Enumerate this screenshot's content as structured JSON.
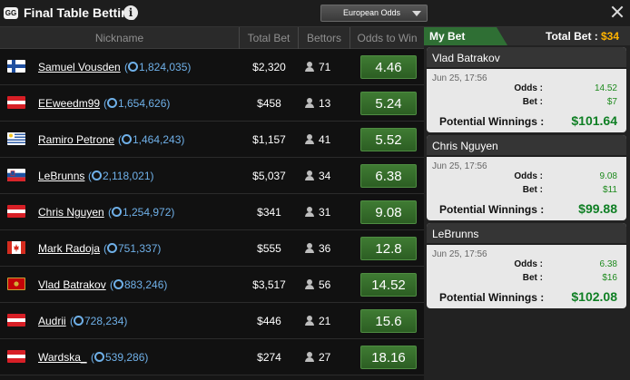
{
  "window": {
    "logo": "GG",
    "title": "Final Table Betting",
    "odds_format": "European Odds"
  },
  "table": {
    "headers": [
      "Nickname",
      "Total Bet",
      "Bettors",
      "Odds to Win"
    ],
    "rows": [
      {
        "flag": "finland",
        "nickname": "Samuel Vousden",
        "chips": "1,824,035",
        "total_bet": "$2,320",
        "bettors": "71",
        "odds": "4.46"
      },
      {
        "flag": "austria",
        "nickname": "EEweedm99",
        "chips": "1,654,626",
        "total_bet": "$458",
        "bettors": "13",
        "odds": "5.24"
      },
      {
        "flag": "uruguay",
        "nickname": "Ramiro Petrone",
        "chips": "1,464,243",
        "total_bet": "$1,157",
        "bettors": "41",
        "odds": "5.52"
      },
      {
        "flag": "slovenia",
        "nickname": "LeBrunns",
        "chips": "2,118,021",
        "total_bet": "$5,037",
        "bettors": "34",
        "odds": "6.38"
      },
      {
        "flag": "austria",
        "nickname": "Chris Nguyen",
        "chips": "1,254,972",
        "total_bet": "$341",
        "bettors": "31",
        "odds": "9.08"
      },
      {
        "flag": "canada",
        "nickname": "Mark Radoja",
        "chips": "751,337",
        "total_bet": "$555",
        "bettors": "36",
        "odds": "12.8"
      },
      {
        "flag": "montenegro",
        "nickname": "Vlad Batrakov",
        "chips": "883,246",
        "total_bet": "$3,517",
        "bettors": "56",
        "odds": "14.52"
      },
      {
        "flag": "austria",
        "nickname": "Audrii",
        "chips": "728,234",
        "total_bet": "$446",
        "bettors": "21",
        "odds": "15.6"
      },
      {
        "flag": "austria",
        "nickname": "Wardska_",
        "chips": "539,286",
        "total_bet": "$274",
        "bettors": "27",
        "odds": "18.16"
      }
    ]
  },
  "my_bet": {
    "tab_label": "My Bet",
    "total_label": "Total Bet :",
    "total_value": "$34",
    "odds_label": "Odds :",
    "bet_label": "Bet :",
    "winnings_label": "Potential Winnings :",
    "bets": [
      {
        "player": "Vlad Batrakov",
        "date": "Jun 25, 17:56",
        "odds": "14.52",
        "bet": "$7",
        "winnings": "$101.64"
      },
      {
        "player": "Chris Nguyen",
        "date": "Jun 25, 17:56",
        "odds": "9.08",
        "bet": "$11",
        "winnings": "$99.88"
      },
      {
        "player": "LeBrunns",
        "date": "Jun 25, 17:56",
        "odds": "6.38",
        "bet": "$16",
        "winnings": "$102.08"
      }
    ]
  },
  "colors": {
    "odds_button": "#2f6a26",
    "accent_green": "#2f6f34",
    "total_bet_value": "#ffb300",
    "chip_text": "#6fb0e8",
    "winnings_green": "#0f7f24"
  }
}
